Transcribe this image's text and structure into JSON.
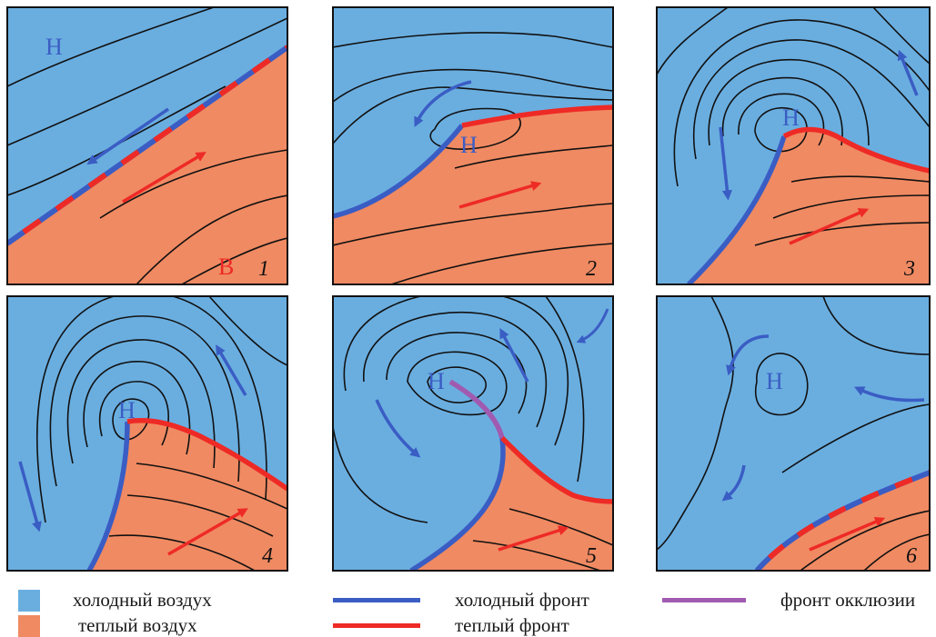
{
  "colors": {
    "cold_air": "#6aaee0",
    "warm_air": "#f08a62",
    "cold_front": "#3a5dc4",
    "warm_front": "#ee2a26",
    "occlusion_front": "#a05bb0",
    "isobar": "#111111",
    "cold_arrow": "#3a5dc4",
    "warm_arrow": "#ee2a26"
  },
  "panels": [
    {
      "number": "1",
      "labels": [
        {
          "text": "Н",
          "kind": "low"
        },
        {
          "text": "В",
          "kind": "high"
        }
      ]
    },
    {
      "number": "2",
      "labels": [
        {
          "text": "Н",
          "kind": "low"
        }
      ]
    },
    {
      "number": "3",
      "labels": [
        {
          "text": "Н",
          "kind": "low"
        }
      ]
    },
    {
      "number": "4",
      "labels": [
        {
          "text": "Н",
          "kind": "low"
        }
      ]
    },
    {
      "number": "5",
      "labels": [
        {
          "text": "Н",
          "kind": "low"
        }
      ]
    },
    {
      "number": "6",
      "labels": [
        {
          "text": "Н",
          "kind": "low"
        }
      ]
    }
  ],
  "legend": {
    "cold_air": "холодный воздух",
    "warm_air": "теплый воздух",
    "cold_front": "холодный фронт",
    "warm_front": "теплый фронт",
    "occlusion_front": "фронт окклюзии"
  }
}
